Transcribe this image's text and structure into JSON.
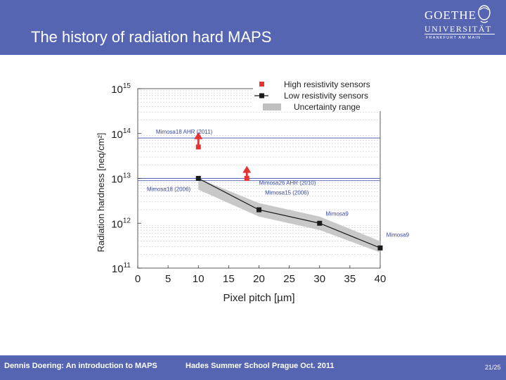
{
  "header": {
    "title": "The history of radiation hard MAPS",
    "background": "#5565b2",
    "logo": {
      "line1": "GOETHE",
      "line2": "UNIVERSITÄT",
      "line3": "FRANKFURT AM MAIN"
    }
  },
  "footer": {
    "author": "Dennis Doering: An introduction to MAPS",
    "event": "Hades Summer School Prague Oct. 2011",
    "page": "21/25"
  },
  "chart_data": {
    "type": "line",
    "xlabel": "Pixel pitch [µm]",
    "ylabel": "Radiation hardness [neq/cm²]",
    "xlim": [
      0,
      40
    ],
    "x_ticks": [
      "0",
      "5",
      "10",
      "15",
      "20",
      "25",
      "30",
      "35",
      "40"
    ],
    "ylim_exponent": [
      11,
      15
    ],
    "y_scale": "log",
    "y_ticks": [
      {
        "exp": 15,
        "base": "10",
        "sup": "15"
      },
      {
        "exp": 14,
        "base": "10",
        "sup": "14"
      },
      {
        "exp": 13,
        "base": "10",
        "sup": "13"
      },
      {
        "exp": 12,
        "base": "10",
        "sup": "12"
      },
      {
        "exp": 11,
        "base": "10",
        "sup": "11"
      }
    ],
    "grid": true,
    "legend": {
      "position": "top-right",
      "items": [
        {
          "label": "High resistivity sensors",
          "color": "#e53434"
        },
        {
          "label": "Low resistivity sensors",
          "color": "#1a1a1a"
        },
        {
          "label": "Uncertainty range",
          "color": "#c0c0c0"
        }
      ]
    },
    "series": [
      {
        "name": "Low resistivity sensors",
        "color": "#1a1a1a",
        "points": [
          {
            "x": 10,
            "y_exp": 13.0
          },
          {
            "x": 20,
            "y_exp": 12.3
          },
          {
            "x": 30,
            "y_exp": 12.0
          },
          {
            "x": 40,
            "y_exp": 11.45
          }
        ],
        "band_low_exp": [
          12.75,
          12.15,
          11.85,
          11.35
        ],
        "band_high_exp": [
          13.0,
          12.45,
          12.15,
          11.6
        ]
      }
    ],
    "high_res_arrows": [
      {
        "x": 10,
        "from_exp": 13.7,
        "to_exp": 14.0,
        "color": "#e53434"
      },
      {
        "x": 18,
        "from_exp": 13.0,
        "to_exp": 13.25,
        "color": "#e53434"
      }
    ],
    "reference_lines": [
      {
        "label": "Mimosa18 AHR (2011)",
        "y_exp": 13.9
      },
      {
        "label": "Mimosa26 AHR (2010)",
        "y_exp": 13.0
      }
    ],
    "annotations": [
      {
        "label": "Mimosa18 (2006)",
        "x": 1.5,
        "y_exp": 12.72
      },
      {
        "label": "Mimosa15 (2006)",
        "x": 21,
        "y_exp": 12.64
      },
      {
        "label": "Mimosa9",
        "x": 31,
        "y_exp": 12.17
      },
      {
        "label": "Mimosa9",
        "x": 41,
        "y_exp": 11.7
      }
    ]
  }
}
